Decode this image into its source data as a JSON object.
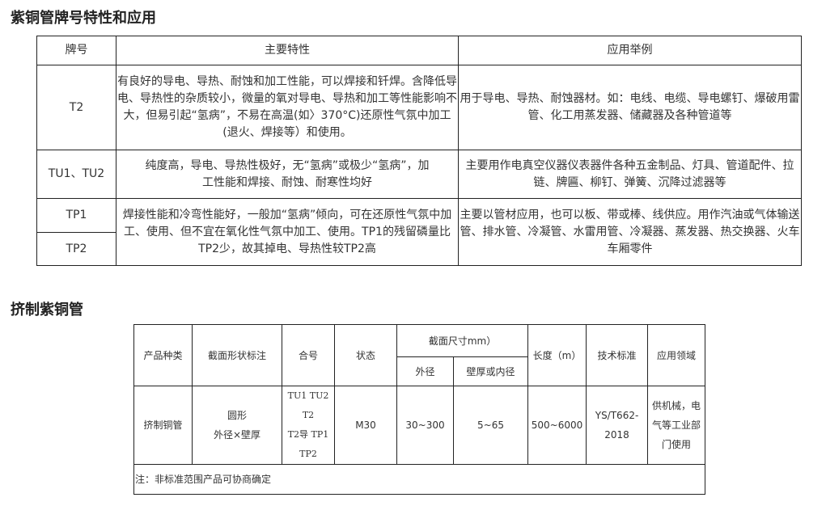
{
  "section1": {
    "title": "紫铜管牌号特性和应用",
    "headers": [
      "牌号",
      "主要特性",
      "应用举例"
    ],
    "rows": [
      {
        "grade": "T2",
        "properties": "有良好的导电、导热、耐蚀和加工性能，可以焊接和钎焊。含降低导电、导热性的杂质较小，微量的氧对导电、导热和加工等性能影响不大，但易引起“氢病”，不易在高温(如〉370°C)还原性气氛中加工(退火、焊接等）和使用。",
        "applications": "用于导电、导热、耐蚀器材。如：电线、电缆、导电螺钉、爆破用雷管、化工用蒸发器、储藏器及各种管道等"
      },
      {
        "grade": "TU1、TU2",
        "properties": "纯度高，导电、导热性极好，无“氢病”或极少“氢病”，加工性能和焊接、耐蚀、耐寒性均好",
        "applications": "主要用作电真空仪器仪表器件各种五金制品、灯具、管道配件、拉链、牌匾、柳钉、弹簧、沉降过滤器等"
      },
      {
        "grade": "TP1",
        "properties": "焊接性能和冷弯性能好，一般加“氢病”倾向，可在还原性气氛中加工、使用、但不宜在氧化性气氛中加工、使用。TP1的残留磷量比TP2少，故其掉电、导热性较TP2高",
        "applications": "主要以管材应用，也可以板、带或棒、线供应。用作汽油或气体输送管、排水管、冷凝管、水雷用管、冷凝器、蒸发器、热交换器、火车车厢零件"
      },
      {
        "grade": "TP2"
      }
    ]
  },
  "section2": {
    "title": "挤制紫铜管",
    "headers": {
      "product": "产品种类",
      "shape": "截面形状标注",
      "alloy": "合号",
      "state": "状态",
      "section_size": "截面尺寸mm）",
      "outer": "外径",
      "wall": "壁厚或内径",
      "length": "长度（m）",
      "standard": "技术标准",
      "field": "应用领域"
    },
    "row": {
      "product": "挤制铜管",
      "shape_1": "圆形",
      "shape_2": "外径×壁厚",
      "alloy_1": "TU1 TU2 T2",
      "alloy_2": "T2导 TP1",
      "alloy_3": "TP2",
      "state": "M30",
      "outer": "30~300",
      "wall": "5~65",
      "length": "500~6000",
      "standard": "YS/T662-2018",
      "field": "供机械，电气等工业部门使用"
    },
    "note": "注：非标准范围产品可协商确定"
  }
}
